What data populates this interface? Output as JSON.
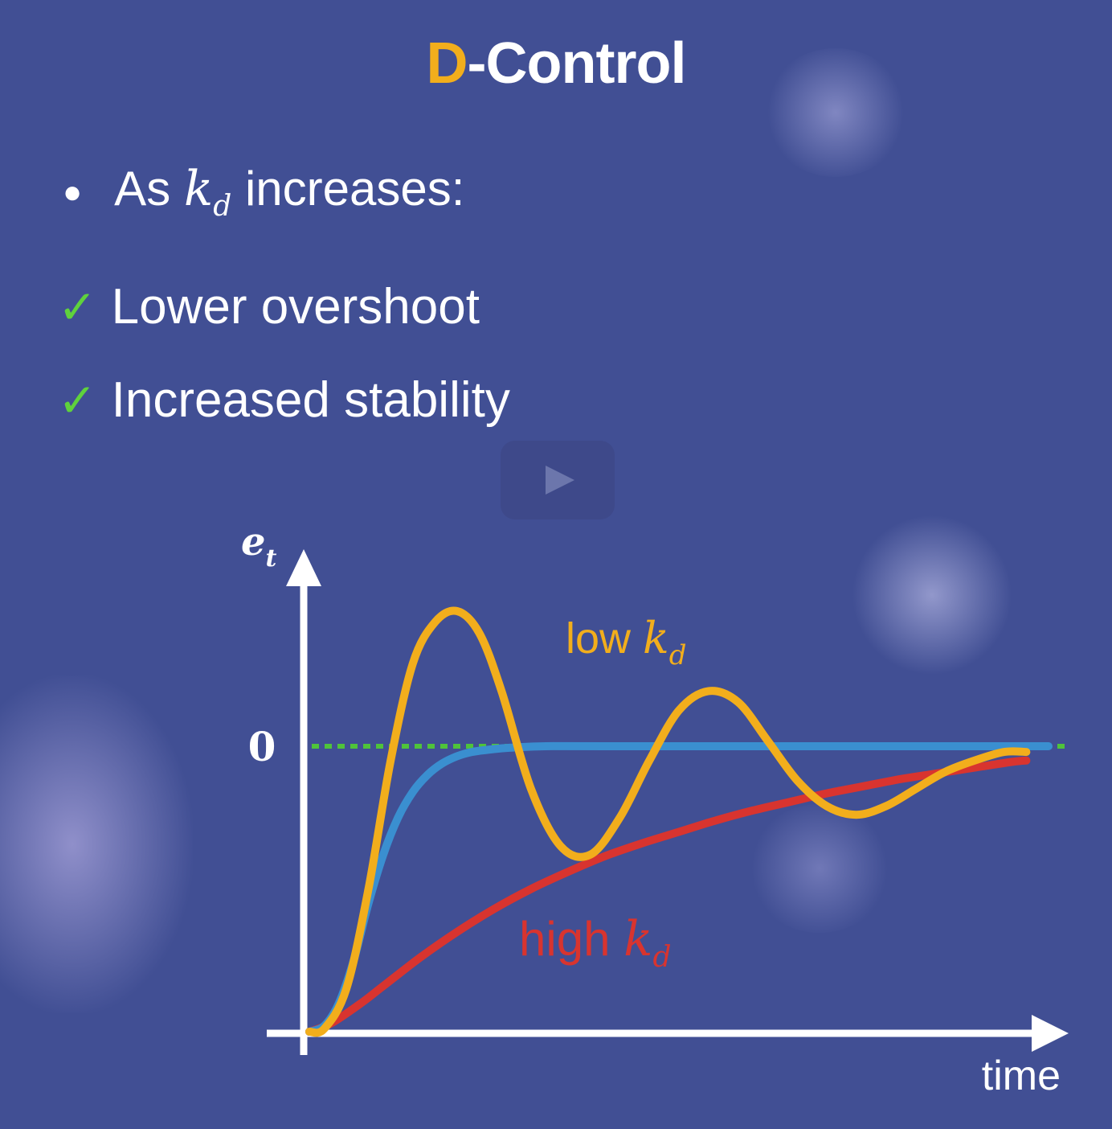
{
  "header": {
    "title_accent": "D",
    "title_rest": "-Control"
  },
  "bullets": {
    "intro_prefix": "As ",
    "intro_var": "k",
    "intro_var_sub": "d",
    "intro_suffix": " increases:",
    "checks": [
      "Lower overshoot",
      "Increased stability"
    ]
  },
  "colors": {
    "accent": "#f2ae1c",
    "check": "#5fd23c",
    "background": "#414f94"
  },
  "chart_data": {
    "type": "line",
    "ylabel": "e_t",
    "ylabel_var": "e",
    "ylabel_sub": "t",
    "xlabel": "time",
    "y_tick_labels": [
      "0"
    ],
    "x_range": [
      0,
      10
    ],
    "y_range": [
      -1.05,
      0.5
    ],
    "reference_line": {
      "y": 0,
      "style": "dotted",
      "color": "#4fc33a"
    },
    "series": [
      {
        "name": "low k_d",
        "label_prefix": "low ",
        "label_var": "k",
        "label_sub": "d",
        "color": "#f2ae1c",
        "x": [
          0,
          0.2,
          0.5,
          0.8,
          1.1,
          1.4,
          1.7,
          2.0,
          2.3,
          2.6,
          3.0,
          3.4,
          3.8,
          4.2,
          4.6,
          5.0,
          5.4,
          5.8,
          6.2,
          6.6,
          7.0,
          7.4,
          7.8,
          8.2,
          8.6,
          9.0,
          9.4,
          9.7
        ],
        "y": [
          -1.0,
          -0.99,
          -0.85,
          -0.5,
          -0.05,
          0.3,
          0.45,
          0.49,
          0.41,
          0.2,
          -0.15,
          -0.35,
          -0.38,
          -0.25,
          -0.05,
          0.13,
          0.2,
          0.16,
          0.02,
          -0.12,
          -0.21,
          -0.24,
          -0.21,
          -0.15,
          -0.09,
          -0.05,
          -0.02,
          -0.02
        ]
      },
      {
        "name": "",
        "color": "#3a8fd0",
        "x": [
          0,
          0.2,
          0.4,
          0.6,
          0.8,
          1.0,
          1.2,
          1.4,
          1.6,
          1.8,
          2.0,
          2.2,
          2.5,
          2.8,
          3.2,
          4.0,
          6.0,
          8.0,
          10.0
        ],
        "y": [
          -1.0,
          -0.98,
          -0.9,
          -0.75,
          -0.55,
          -0.38,
          -0.25,
          -0.16,
          -0.1,
          -0.06,
          -0.035,
          -0.02,
          -0.01,
          -0.004,
          0.0,
          0.0,
          0.0,
          0.0,
          0.0
        ]
      },
      {
        "name": "high k_d",
        "label_prefix": "high ",
        "label_var": "k",
        "label_sub": "d",
        "color": "#d8342f",
        "x": [
          0,
          0.3,
          0.7,
          1.0,
          1.5,
          2.0,
          2.5,
          3.0,
          3.5,
          4.0,
          4.5,
          5.0,
          5.5,
          6.0,
          6.5,
          7.0,
          7.5,
          8.0,
          8.5,
          9.0,
          9.5,
          9.7
        ],
        "y": [
          -1.0,
          -0.97,
          -0.9,
          -0.84,
          -0.74,
          -0.65,
          -0.57,
          -0.5,
          -0.44,
          -0.385,
          -0.34,
          -0.3,
          -0.26,
          -0.225,
          -0.195,
          -0.165,
          -0.14,
          -0.115,
          -0.095,
          -0.075,
          -0.055,
          -0.05
        ]
      }
    ]
  }
}
